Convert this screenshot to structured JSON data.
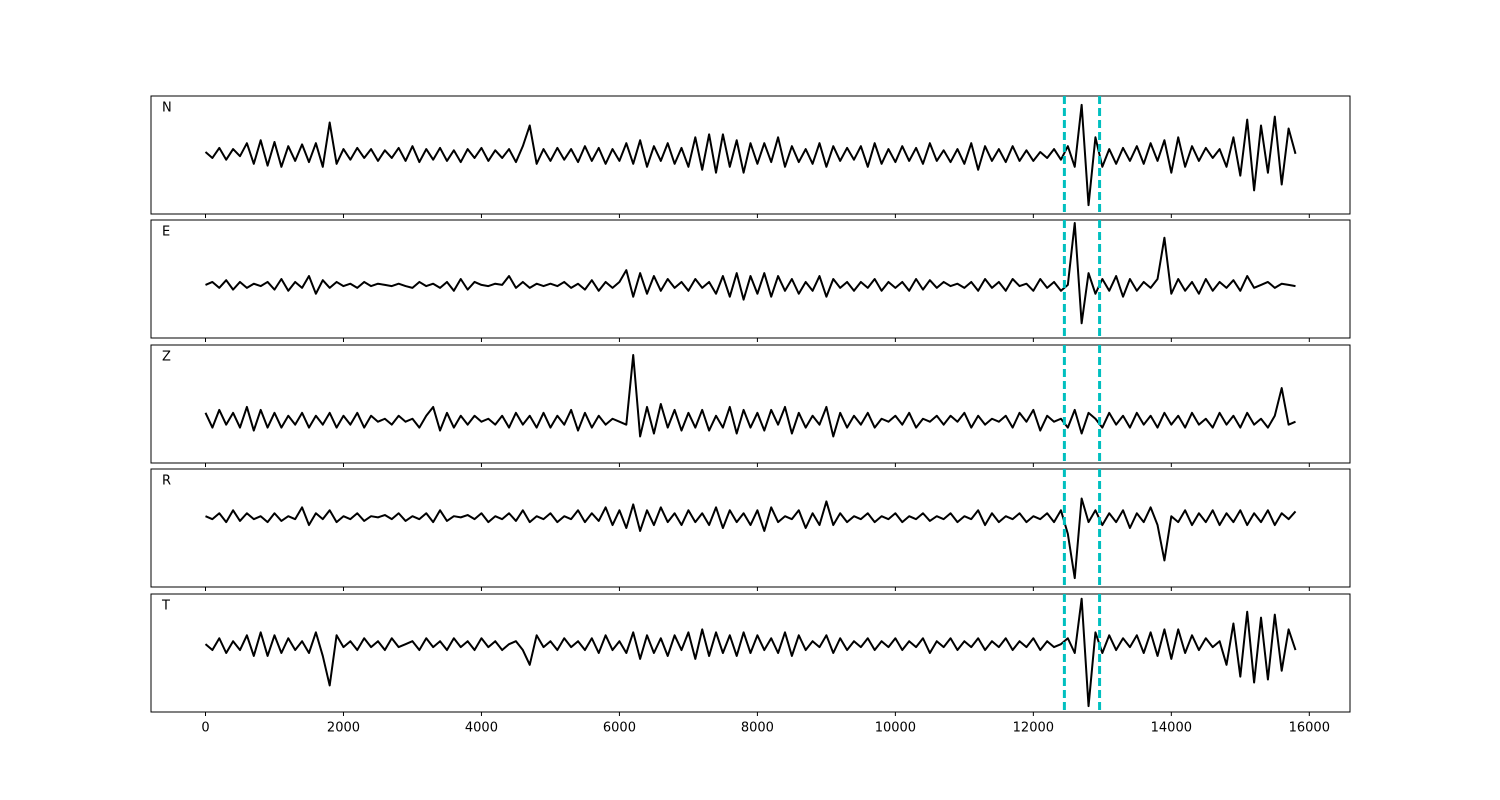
{
  "chart_data": {
    "type": "line",
    "x": [
      0,
      100,
      200,
      300,
      400,
      500,
      600,
      700,
      800,
      900,
      1000,
      1100,
      1200,
      1300,
      1400,
      1500,
      1600,
      1700,
      1800,
      1900,
      2000,
      2100,
      2200,
      2300,
      2400,
      2500,
      2600,
      2700,
      2800,
      2900,
      3000,
      3100,
      3200,
      3300,
      3400,
      3500,
      3600,
      3700,
      3800,
      3900,
      4000,
      4100,
      4200,
      4300,
      4400,
      4500,
      4600,
      4700,
      4800,
      4900,
      5000,
      5100,
      5200,
      5300,
      5400,
      5500,
      5600,
      5700,
      5800,
      5900,
      6000,
      6100,
      6200,
      6300,
      6400,
      6500,
      6600,
      6700,
      6800,
      6900,
      7000,
      7100,
      7200,
      7300,
      7400,
      7500,
      7600,
      7700,
      7800,
      7900,
      8000,
      8100,
      8200,
      8300,
      8400,
      8500,
      8600,
      8700,
      8800,
      8900,
      9000,
      9100,
      9200,
      9300,
      9400,
      9500,
      9600,
      9700,
      9800,
      9900,
      10000,
      10100,
      10200,
      10300,
      10400,
      10500,
      10600,
      10700,
      10800,
      10900,
      11000,
      11100,
      11200,
      11300,
      11400,
      11500,
      11600,
      11700,
      11800,
      11900,
      12000,
      12100,
      12200,
      12300,
      12400,
      12500,
      12600,
      12700,
      12800,
      12900,
      13000,
      13100,
      13200,
      13300,
      13400,
      13500,
      13600,
      13700,
      13800,
      13900,
      14000,
      14100,
      14200,
      14300,
      14400,
      14500,
      14600,
      14700,
      14800,
      14900,
      15000,
      15100,
      15200,
      15300,
      15400,
      15500,
      15600,
      15700,
      15800
    ],
    "xlim": [
      -790,
      16590
    ],
    "xticks": [
      0,
      2000,
      4000,
      6000,
      8000,
      10000,
      12000,
      14000,
      16000
    ],
    "ylim": [
      -1,
      1
    ],
    "vlines": {
      "values": [
        12450,
        12960
      ],
      "color": "#00bfbf"
    },
    "series": [
      {
        "name": "N",
        "color": "#000000",
        "values": [
          0.05,
          -0.05,
          0.12,
          -0.08,
          0.1,
          -0.02,
          0.2,
          -0.15,
          0.25,
          -0.18,
          0.22,
          -0.2,
          0.15,
          -0.1,
          0.18,
          -0.12,
          0.2,
          -0.2,
          0.55,
          -0.15,
          0.1,
          -0.08,
          0.12,
          -0.05,
          0.1,
          -0.1,
          0.08,
          -0.05,
          0.12,
          -0.1,
          0.15,
          -0.12,
          0.1,
          -0.08,
          0.12,
          -0.1,
          0.08,
          -0.12,
          0.1,
          -0.05,
          0.12,
          -0.1,
          0.08,
          -0.05,
          0.1,
          -0.12,
          0.15,
          0.5,
          -0.15,
          0.1,
          -0.1,
          0.12,
          -0.08,
          0.1,
          -0.12,
          0.15,
          -0.1,
          0.12,
          -0.15,
          0.1,
          -0.1,
          0.2,
          -0.15,
          0.25,
          -0.2,
          0.15,
          -0.1,
          0.2,
          -0.15,
          0.12,
          -0.2,
          0.3,
          -0.25,
          0.35,
          -0.3,
          0.35,
          -0.2,
          0.25,
          -0.3,
          0.2,
          -0.15,
          0.2,
          -0.12,
          0.3,
          -0.2,
          0.15,
          -0.12,
          0.1,
          -0.15,
          0.2,
          -0.2,
          0.15,
          -0.1,
          0.12,
          -0.08,
          0.15,
          -0.2,
          0.2,
          -0.15,
          0.1,
          -0.12,
          0.15,
          -0.1,
          0.12,
          -0.15,
          0.2,
          -0.1,
          0.08,
          -0.12,
          0.1,
          -0.15,
          0.2,
          -0.25,
          0.15,
          -0.1,
          0.1,
          -0.12,
          0.15,
          -0.1,
          0.08,
          -0.1,
          0.05,
          -0.05,
          0.1,
          -0.08,
          0.15,
          -0.2,
          0.85,
          -0.85,
          0.3,
          -0.2,
          0.1,
          -0.15,
          0.12,
          -0.1,
          0.15,
          -0.15,
          0.2,
          -0.1,
          0.25,
          -0.3,
          0.3,
          -0.2,
          0.15,
          -0.1,
          0.12,
          -0.05,
          0.1,
          -0.2,
          0.3,
          -0.35,
          0.6,
          -0.6,
          0.5,
          -0.3,
          0.65,
          -0.5,
          0.45,
          0.02
        ]
      },
      {
        "name": "E",
        "color": "#000000",
        "values": [
          -0.1,
          -0.05,
          -0.15,
          -0.02,
          -0.18,
          -0.05,
          -0.15,
          -0.08,
          -0.12,
          -0.05,
          -0.18,
          0.0,
          -0.2,
          -0.05,
          -0.15,
          0.05,
          -0.25,
          -0.02,
          -0.15,
          -0.05,
          -0.12,
          -0.08,
          -0.15,
          -0.05,
          -0.12,
          -0.08,
          -0.1,
          -0.12,
          -0.08,
          -0.12,
          -0.15,
          -0.05,
          -0.12,
          -0.08,
          -0.15,
          -0.05,
          -0.2,
          0.0,
          -0.18,
          -0.05,
          -0.1,
          -0.12,
          -0.08,
          -0.1,
          0.05,
          -0.15,
          -0.05,
          -0.15,
          -0.08,
          -0.12,
          -0.08,
          -0.12,
          -0.05,
          -0.15,
          -0.08,
          -0.18,
          -0.02,
          -0.2,
          -0.05,
          -0.15,
          -0.05,
          0.15,
          -0.3,
          0.1,
          -0.25,
          0.05,
          -0.2,
          0.0,
          -0.15,
          -0.05,
          -0.2,
          0.0,
          -0.15,
          -0.05,
          -0.25,
          0.05,
          -0.3,
          0.1,
          -0.35,
          0.05,
          -0.25,
          0.1,
          -0.3,
          0.05,
          -0.2,
          0.0,
          -0.25,
          -0.05,
          -0.2,
          0.05,
          -0.3,
          0.0,
          -0.15,
          -0.05,
          -0.2,
          -0.05,
          -0.15,
          0.0,
          -0.2,
          -0.05,
          -0.15,
          -0.05,
          -0.2,
          0.0,
          -0.18,
          -0.02,
          -0.15,
          -0.05,
          -0.12,
          -0.08,
          -0.15,
          -0.05,
          -0.2,
          0.0,
          -0.15,
          -0.05,
          -0.2,
          0.0,
          -0.12,
          -0.08,
          -0.2,
          0.0,
          -0.15,
          -0.05,
          -0.2,
          -0.1,
          0.95,
          -0.75,
          0.1,
          -0.25,
          0.0,
          -0.2,
          0.05,
          -0.3,
          0.0,
          -0.2,
          -0.05,
          -0.15,
          0.0,
          0.7,
          -0.25,
          0.0,
          -0.2,
          -0.05,
          -0.25,
          0.0,
          -0.2,
          -0.05,
          -0.15,
          -0.02,
          -0.2,
          0.05,
          -0.15,
          -0.1,
          -0.05,
          -0.15,
          -0.08,
          -0.1,
          -0.12
        ]
      },
      {
        "name": "Z",
        "color": "#000000",
        "values": [
          -0.15,
          -0.4,
          -0.1,
          -0.35,
          -0.15,
          -0.4,
          -0.05,
          -0.45,
          -0.1,
          -0.4,
          -0.15,
          -0.4,
          -0.2,
          -0.35,
          -0.15,
          -0.4,
          -0.2,
          -0.35,
          -0.15,
          -0.4,
          -0.2,
          -0.35,
          -0.15,
          -0.4,
          -0.2,
          -0.3,
          -0.25,
          -0.35,
          -0.2,
          -0.3,
          -0.25,
          -0.4,
          -0.2,
          -0.05,
          -0.45,
          -0.15,
          -0.4,
          -0.2,
          -0.35,
          -0.2,
          -0.3,
          -0.25,
          -0.35,
          -0.2,
          -0.4,
          -0.15,
          -0.35,
          -0.2,
          -0.4,
          -0.15,
          -0.4,
          -0.2,
          -0.35,
          -0.1,
          -0.45,
          -0.15,
          -0.4,
          -0.2,
          -0.35,
          -0.25,
          -0.3,
          -0.35,
          0.83,
          -0.55,
          -0.05,
          -0.5,
          0.0,
          -0.4,
          -0.1,
          -0.45,
          -0.15,
          -0.4,
          -0.1,
          -0.45,
          -0.2,
          -0.4,
          -0.05,
          -0.5,
          -0.1,
          -0.4,
          -0.15,
          -0.45,
          -0.1,
          -0.35,
          -0.05,
          -0.5,
          -0.15,
          -0.4,
          -0.2,
          -0.35,
          -0.05,
          -0.55,
          -0.15,
          -0.4,
          -0.2,
          -0.35,
          -0.15,
          -0.4,
          -0.25,
          -0.3,
          -0.2,
          -0.35,
          -0.15,
          -0.4,
          -0.25,
          -0.3,
          -0.2,
          -0.35,
          -0.2,
          -0.3,
          -0.15,
          -0.4,
          -0.2,
          -0.35,
          -0.25,
          -0.3,
          -0.2,
          -0.4,
          -0.15,
          -0.3,
          -0.1,
          -0.45,
          -0.2,
          -0.3,
          -0.25,
          -0.4,
          -0.1,
          -0.5,
          -0.15,
          -0.25,
          -0.4,
          -0.15,
          -0.35,
          -0.2,
          -0.4,
          -0.15,
          -0.35,
          -0.2,
          -0.4,
          -0.15,
          -0.35,
          -0.2,
          -0.4,
          -0.15,
          -0.35,
          -0.25,
          -0.4,
          -0.15,
          -0.35,
          -0.2,
          -0.4,
          -0.15,
          -0.35,
          -0.25,
          -0.4,
          -0.2,
          0.27,
          -0.35,
          -0.3
        ]
      },
      {
        "name": "R",
        "color": "#000000",
        "values": [
          0.2,
          0.15,
          0.25,
          0.1,
          0.3,
          0.12,
          0.25,
          0.15,
          0.2,
          0.1,
          0.25,
          0.12,
          0.2,
          0.15,
          0.35,
          0.05,
          0.25,
          0.15,
          0.3,
          0.1,
          0.2,
          0.15,
          0.25,
          0.12,
          0.2,
          0.18,
          0.22,
          0.15,
          0.25,
          0.12,
          0.2,
          0.15,
          0.25,
          0.1,
          0.3,
          0.12,
          0.2,
          0.18,
          0.22,
          0.15,
          0.25,
          0.1,
          0.2,
          0.15,
          0.25,
          0.12,
          0.3,
          0.1,
          0.2,
          0.15,
          0.25,
          0.1,
          0.2,
          0.15,
          0.3,
          0.1,
          0.25,
          0.12,
          0.35,
          0.05,
          0.3,
          0.0,
          0.4,
          -0.05,
          0.3,
          0.05,
          0.35,
          0.1,
          0.25,
          0.05,
          0.3,
          0.1,
          0.25,
          0.05,
          0.35,
          0.0,
          0.3,
          0.1,
          0.25,
          0.05,
          0.3,
          -0.05,
          0.35,
          0.1,
          0.2,
          0.15,
          0.3,
          0.0,
          0.25,
          0.05,
          0.45,
          0.05,
          0.25,
          0.1,
          0.2,
          0.15,
          0.25,
          0.1,
          0.2,
          0.15,
          0.25,
          0.1,
          0.2,
          0.15,
          0.25,
          0.12,
          0.2,
          0.15,
          0.25,
          0.1,
          0.2,
          0.15,
          0.3,
          0.05,
          0.25,
          0.1,
          0.2,
          0.15,
          0.25,
          0.1,
          0.2,
          0.15,
          0.25,
          0.1,
          0.3,
          -0.1,
          -0.85,
          0.5,
          0.1,
          0.3,
          0.05,
          0.25,
          0.1,
          0.3,
          0.0,
          0.25,
          0.1,
          0.35,
          0.05,
          -0.55,
          0.2,
          0.1,
          0.3,
          0.05,
          0.25,
          0.1,
          0.3,
          0.05,
          0.25,
          0.1,
          0.3,
          0.05,
          0.25,
          0.1,
          0.3,
          0.05,
          0.25,
          0.15,
          0.28
        ]
      },
      {
        "name": "T",
        "color": "#000000",
        "values": [
          0.15,
          0.05,
          0.25,
          0.0,
          0.2,
          0.05,
          0.3,
          -0.05,
          0.35,
          -0.05,
          0.3,
          0.0,
          0.25,
          0.05,
          0.2,
          0.0,
          0.35,
          -0.05,
          -0.55,
          0.3,
          0.1,
          0.2,
          0.05,
          0.25,
          0.1,
          0.2,
          0.05,
          0.25,
          0.1,
          0.15,
          0.2,
          0.05,
          0.25,
          0.1,
          0.2,
          0.05,
          0.25,
          0.1,
          0.2,
          0.05,
          0.25,
          0.1,
          0.2,
          0.05,
          0.15,
          0.2,
          0.05,
          -0.2,
          0.3,
          0.1,
          0.2,
          0.05,
          0.25,
          0.1,
          0.2,
          0.05,
          0.25,
          0.0,
          0.3,
          0.05,
          0.2,
          0.0,
          0.35,
          -0.1,
          0.3,
          0.0,
          0.25,
          -0.05,
          0.3,
          0.05,
          0.35,
          -0.1,
          0.4,
          -0.05,
          0.35,
          0.0,
          0.3,
          -0.05,
          0.35,
          0.0,
          0.3,
          0.05,
          0.25,
          0.0,
          0.35,
          -0.05,
          0.3,
          0.05,
          0.2,
          0.1,
          0.3,
          0.0,
          0.25,
          0.05,
          0.2,
          0.1,
          0.25,
          0.05,
          0.2,
          0.1,
          0.25,
          0.05,
          0.2,
          0.1,
          0.25,
          0.0,
          0.2,
          0.1,
          0.25,
          0.05,
          0.2,
          0.1,
          0.25,
          0.05,
          0.2,
          0.1,
          0.25,
          0.05,
          0.2,
          0.1,
          0.25,
          0.05,
          0.2,
          0.1,
          0.15,
          0.25,
          0.0,
          0.92,
          -0.9,
          0.35,
          0.0,
          0.3,
          0.05,
          0.25,
          0.1,
          0.3,
          0.0,
          0.35,
          -0.05,
          0.4,
          -0.1,
          0.4,
          0.0,
          0.3,
          0.05,
          0.25,
          0.1,
          0.2,
          -0.2,
          0.5,
          -0.4,
          0.7,
          -0.5,
          0.6,
          -0.45,
          0.65,
          -0.3,
          0.4,
          0.05
        ]
      }
    ]
  }
}
